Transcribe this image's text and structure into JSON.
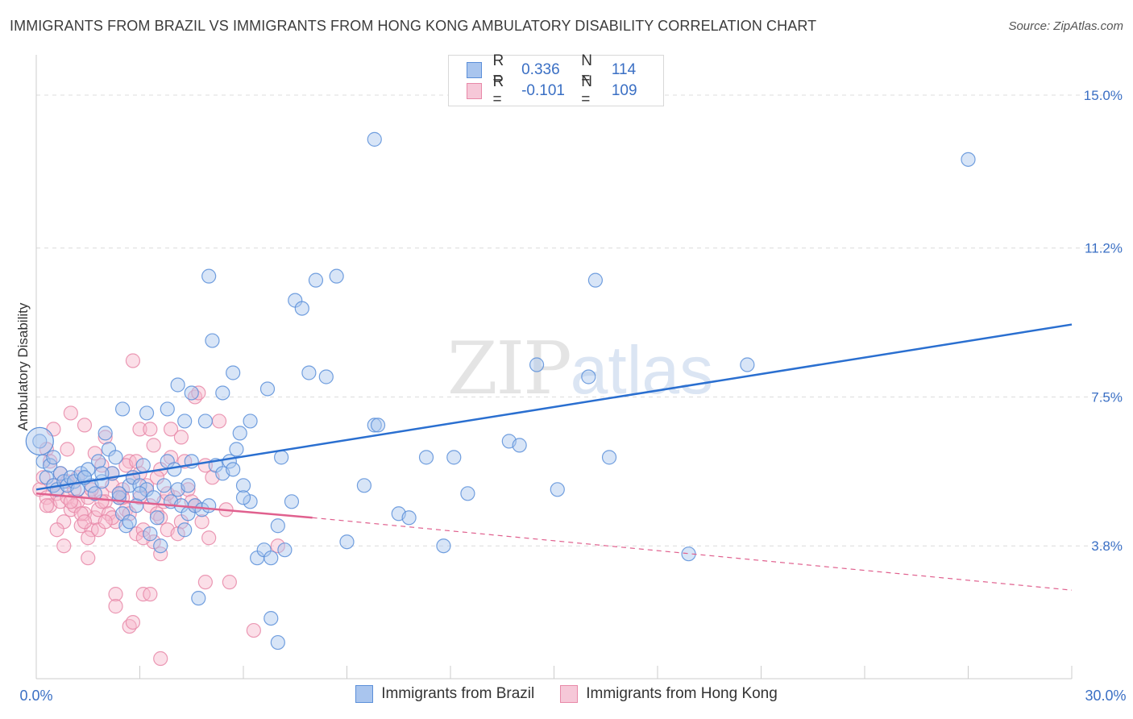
{
  "title": "IMMIGRANTS FROM BRAZIL VS IMMIGRANTS FROM HONG KONG AMBULATORY DISABILITY CORRELATION CHART",
  "source": "Source: ZipAtlas.com",
  "watermark": {
    "zip": "ZIP",
    "atlas": "atlas"
  },
  "legend": {
    "r_label": "R =",
    "n_label": "N =",
    "series": [
      {
        "r": "0.336",
        "n": "114"
      },
      {
        "r": "-0.101",
        "n": "109"
      }
    ]
  },
  "bottom_legend": [
    "Immigrants from Brazil",
    "Immigrants from Hong Kong"
  ],
  "colors": {
    "brazil_fill": "#a9c5ee",
    "brazil_stroke": "#5b8fd9",
    "brazil_line": "#2a6fd0",
    "hk_fill": "#f6b8cc",
    "hk_stroke": "#e888a8",
    "hk_line": "#e0608e",
    "axis_text": "#3a6fc4",
    "grid": "#dcdcdc"
  },
  "chart_data": {
    "type": "scatter",
    "title": "IMMIGRANTS FROM BRAZIL VS IMMIGRANTS FROM HONG KONG AMBULATORY DISABILITY CORRELATION CHART",
    "xlabel": "",
    "ylabel": "Ambulatory Disability",
    "xlim": [
      0,
      30
    ],
    "ylim": [
      0.5,
      15.8
    ],
    "x_tick_labels": [
      "0.0%",
      "30.0%"
    ],
    "y_ticks": [
      3.8,
      7.5,
      11.2,
      15.0
    ],
    "y_tick_labels": [
      "3.8%",
      "7.5%",
      "11.2%",
      "15.0%"
    ],
    "grid": true,
    "legend_position": "top-center",
    "series": [
      {
        "name": "Immigrants from Brazil",
        "r": 0.336,
        "n": 114,
        "trend": {
          "x0": 0,
          "y0": 5.2,
          "x1": 30,
          "y1": 9.3
        },
        "points": [
          [
            0.1,
            6.4
          ],
          [
            0.2,
            5.9
          ],
          [
            0.3,
            5.5
          ],
          [
            0.4,
            5.8
          ],
          [
            0.5,
            5.3
          ],
          [
            0.6,
            5.2
          ],
          [
            0.7,
            5.6
          ],
          [
            0.8,
            5.4
          ],
          [
            0.9,
            5.3
          ],
          [
            1.0,
            5.5
          ],
          [
            1.1,
            5.4
          ],
          [
            1.2,
            5.2
          ],
          [
            1.3,
            5.6
          ],
          [
            1.4,
            5.5
          ],
          [
            1.5,
            5.7
          ],
          [
            1.6,
            5.3
          ],
          [
            1.7,
            5.1
          ],
          [
            1.8,
            5.9
          ],
          [
            1.9,
            5.4
          ],
          [
            2.0,
            6.6
          ],
          [
            2.1,
            6.2
          ],
          [
            2.2,
            5.6
          ],
          [
            2.3,
            6.0
          ],
          [
            2.4,
            5.0
          ],
          [
            2.5,
            4.6
          ],
          [
            2.6,
            4.3
          ],
          [
            2.7,
            5.3
          ],
          [
            2.8,
            5.5
          ],
          [
            2.9,
            4.8
          ],
          [
            3.0,
            5.3
          ],
          [
            3.1,
            5.8
          ],
          [
            3.2,
            5.2
          ],
          [
            3.3,
            4.1
          ],
          [
            3.4,
            5.0
          ],
          [
            3.5,
            4.5
          ],
          [
            3.6,
            3.8
          ],
          [
            3.7,
            5.3
          ],
          [
            3.8,
            5.9
          ],
          [
            3.9,
            4.9
          ],
          [
            4.0,
            5.7
          ],
          [
            4.1,
            5.2
          ],
          [
            4.2,
            4.8
          ],
          [
            4.3,
            4.2
          ],
          [
            4.4,
            4.6
          ],
          [
            4.5,
            5.9
          ],
          [
            4.6,
            4.8
          ],
          [
            4.8,
            4.7
          ],
          [
            5.0,
            4.8
          ],
          [
            5.2,
            5.8
          ],
          [
            5.4,
            5.6
          ],
          [
            5.6,
            5.9
          ],
          [
            5.8,
            6.2
          ],
          [
            6.0,
            5.3
          ],
          [
            6.2,
            4.9
          ],
          [
            6.4,
            3.5
          ],
          [
            6.6,
            3.7
          ],
          [
            6.8,
            3.5
          ],
          [
            7.0,
            4.3
          ],
          [
            7.2,
            3.7
          ],
          [
            7.4,
            4.9
          ],
          [
            2.5,
            7.2
          ],
          [
            3.2,
            7.1
          ],
          [
            3.8,
            7.2
          ],
          [
            4.1,
            7.8
          ],
          [
            4.3,
            6.9
          ],
          [
            4.5,
            7.6
          ],
          [
            4.9,
            6.9
          ],
          [
            5.1,
            8.9
          ],
          [
            5.4,
            7.6
          ],
          [
            5.7,
            8.1
          ],
          [
            5.9,
            6.6
          ],
          [
            6.2,
            6.9
          ],
          [
            6.7,
            7.7
          ],
          [
            7.1,
            6.0
          ],
          [
            7.5,
            9.9
          ],
          [
            7.7,
            9.7
          ],
          [
            7.9,
            8.1
          ],
          [
            8.1,
            10.4
          ],
          [
            8.4,
            8.0
          ],
          [
            8.7,
            10.5
          ],
          [
            9.0,
            3.9
          ],
          [
            9.5,
            5.3
          ],
          [
            9.8,
            6.8
          ],
          [
            10.5,
            4.6
          ],
          [
            10.8,
            4.5
          ],
          [
            11.3,
            6.0
          ],
          [
            11.8,
            3.8
          ],
          [
            12.1,
            6.0
          ],
          [
            12.5,
            5.1
          ],
          [
            13.7,
            6.4
          ],
          [
            14.0,
            6.3
          ],
          [
            14.5,
            8.3
          ],
          [
            15.1,
            5.2
          ],
          [
            16.0,
            8.0
          ],
          [
            16.2,
            10.4
          ],
          [
            16.6,
            6.0
          ],
          [
            18.9,
            3.6
          ],
          [
            20.6,
            8.3
          ],
          [
            27.0,
            13.4
          ],
          [
            9.8,
            13.9
          ],
          [
            5.0,
            10.5
          ],
          [
            6.8,
            2.0
          ],
          [
            7.0,
            1.4
          ],
          [
            4.7,
            2.5
          ],
          [
            9.9,
            6.8
          ],
          [
            2.7,
            4.4
          ],
          [
            1.4,
            5.5
          ],
          [
            3.0,
            5.1
          ],
          [
            5.7,
            5.7
          ],
          [
            1.9,
            5.6
          ],
          [
            0.5,
            6.0
          ],
          [
            2.4,
            5.1
          ],
          [
            4.4,
            5.3
          ],
          [
            6.0,
            5.0
          ]
        ]
      },
      {
        "name": "Immigrants from Hong Kong",
        "r": -0.101,
        "n": 109,
        "trend": {
          "x0": 0,
          "y0": 5.1,
          "x1": 8,
          "y1": 4.5,
          "dash_x1": 30,
          "dash_y1": 2.7
        },
        "points": [
          [
            0.1,
            5.2
          ],
          [
            0.2,
            5.5
          ],
          [
            0.3,
            5.0
          ],
          [
            0.4,
            4.8
          ],
          [
            0.5,
            5.3
          ],
          [
            0.6,
            5.1
          ],
          [
            0.7,
            4.9
          ],
          [
            0.8,
            4.4
          ],
          [
            0.9,
            5.0
          ],
          [
            1.0,
            4.7
          ],
          [
            1.1,
            5.2
          ],
          [
            1.2,
            4.9
          ],
          [
            1.3,
            4.3
          ],
          [
            1.4,
            4.6
          ],
          [
            1.5,
            5.0
          ],
          [
            1.6,
            4.2
          ],
          [
            1.7,
            4.5
          ],
          [
            1.8,
            4.7
          ],
          [
            1.9,
            5.1
          ],
          [
            2.0,
            4.9
          ],
          [
            2.1,
            4.6
          ],
          [
            2.2,
            5.3
          ],
          [
            2.3,
            4.4
          ],
          [
            2.4,
            5.0
          ],
          [
            2.5,
            5.2
          ],
          [
            2.6,
            4.7
          ],
          [
            2.7,
            5.9
          ],
          [
            2.8,
            5.5
          ],
          [
            2.9,
            4.1
          ],
          [
            3.0,
            5.0
          ],
          [
            3.1,
            4.2
          ],
          [
            3.2,
            5.3
          ],
          [
            3.3,
            4.8
          ],
          [
            3.4,
            3.9
          ],
          [
            3.5,
            4.6
          ],
          [
            3.6,
            5.7
          ],
          [
            3.7,
            4.9
          ],
          [
            3.8,
            4.2
          ],
          [
            3.9,
            6.0
          ],
          [
            4.0,
            5.0
          ],
          [
            4.2,
            4.4
          ],
          [
            4.4,
            5.2
          ],
          [
            4.6,
            4.8
          ],
          [
            4.8,
            4.4
          ],
          [
            5.0,
            4.0
          ],
          [
            0.5,
            6.7
          ],
          [
            0.9,
            6.2
          ],
          [
            1.4,
            6.8
          ],
          [
            1.7,
            6.1
          ],
          [
            2.0,
            6.5
          ],
          [
            2.6,
            5.8
          ],
          [
            3.0,
            5.6
          ],
          [
            3.4,
            6.3
          ],
          [
            3.9,
            6.7
          ],
          [
            4.2,
            6.5
          ],
          [
            4.6,
            7.5
          ],
          [
            4.9,
            5.8
          ],
          [
            5.3,
            6.9
          ],
          [
            1.0,
            7.1
          ],
          [
            0.3,
            6.2
          ],
          [
            2.8,
            8.4
          ],
          [
            3.0,
            6.7
          ],
          [
            3.3,
            6.7
          ],
          [
            4.7,
            7.6
          ],
          [
            2.3,
            2.6
          ],
          [
            2.3,
            2.3
          ],
          [
            2.7,
            1.8
          ],
          [
            2.8,
            1.9
          ],
          [
            3.1,
            2.6
          ],
          [
            3.3,
            2.6
          ],
          [
            3.6,
            1.0
          ],
          [
            4.9,
            2.9
          ],
          [
            5.6,
            2.9
          ],
          [
            6.3,
            1.7
          ],
          [
            7.0,
            3.8
          ],
          [
            1.5,
            3.5
          ],
          [
            0.8,
            3.8
          ],
          [
            1.9,
            5.8
          ],
          [
            3.6,
            3.6
          ],
          [
            0.6,
            4.2
          ],
          [
            1.2,
            5.5
          ],
          [
            2.4,
            5.1
          ],
          [
            1.5,
            4.0
          ],
          [
            0.7,
            5.6
          ],
          [
            1.8,
            4.2
          ],
          [
            2.9,
            5.9
          ],
          [
            3.5,
            5.5
          ],
          [
            4.1,
            4.1
          ],
          [
            2.2,
            4.5
          ],
          [
            1.1,
            4.8
          ],
          [
            0.4,
            5.9
          ],
          [
            1.6,
            5.2
          ],
          [
            2.5,
            5.0
          ],
          [
            3.8,
            5.1
          ],
          [
            1.3,
            4.6
          ],
          [
            0.9,
            5.4
          ],
          [
            2.0,
            4.4
          ],
          [
            3.1,
            4.0
          ],
          [
            4.5,
            4.9
          ],
          [
            5.1,
            5.5
          ],
          [
            1.9,
            4.9
          ],
          [
            0.3,
            4.8
          ],
          [
            2.7,
            4.6
          ],
          [
            3.6,
            4.5
          ],
          [
            1.0,
            4.9
          ],
          [
            2.2,
            5.6
          ],
          [
            4.3,
            5.9
          ],
          [
            5.5,
            4.7
          ],
          [
            1.4,
            4.4
          ]
        ]
      }
    ]
  }
}
